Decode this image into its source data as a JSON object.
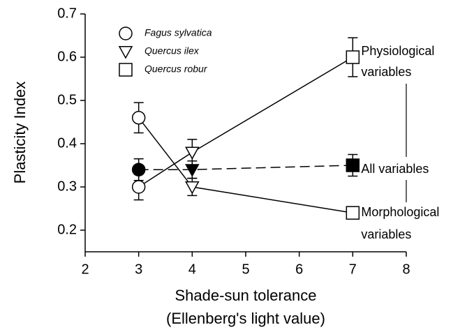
{
  "chart_data": {
    "type": "line",
    "y_label": "Plasticity Index",
    "x_label": [
      "Shade-sun tolerance",
      "(Ellenberg's light value)"
    ],
    "x": [
      3,
      4,
      7
    ],
    "species": [
      "Fagus sylvatica",
      "Quercus ilex",
      "Quercus robur"
    ],
    "markers": [
      "circle",
      "triangle-down",
      "square"
    ],
    "xlim": [
      2,
      8
    ],
    "xticks": [
      2,
      3,
      4,
      5,
      6,
      7,
      8
    ],
    "ylim": [
      0.15,
      0.7
    ],
    "yticks": [
      0.2,
      0.3,
      0.4,
      0.5,
      0.6,
      0.7
    ],
    "series": [
      {
        "name": "Physiological variables",
        "color": "#000000",
        "fill": "#ffffff",
        "dash": false,
        "values": [
          0.3,
          0.38,
          0.6
        ],
        "errors": [
          0.03,
          0.03,
          0.045
        ]
      },
      {
        "name": "Morphological variables",
        "color": "#000000",
        "fill": "#ffffff",
        "dash": false,
        "values": [
          0.46,
          0.3,
          0.24
        ],
        "errors": [
          0.035,
          0.02,
          0.01
        ]
      },
      {
        "name": "All variables",
        "color": "#000000",
        "fill": "#000000",
        "dash": true,
        "values": [
          0.34,
          0.34,
          0.35
        ],
        "errors": [
          0.025,
          0.02,
          0.025
        ]
      }
    ]
  }
}
